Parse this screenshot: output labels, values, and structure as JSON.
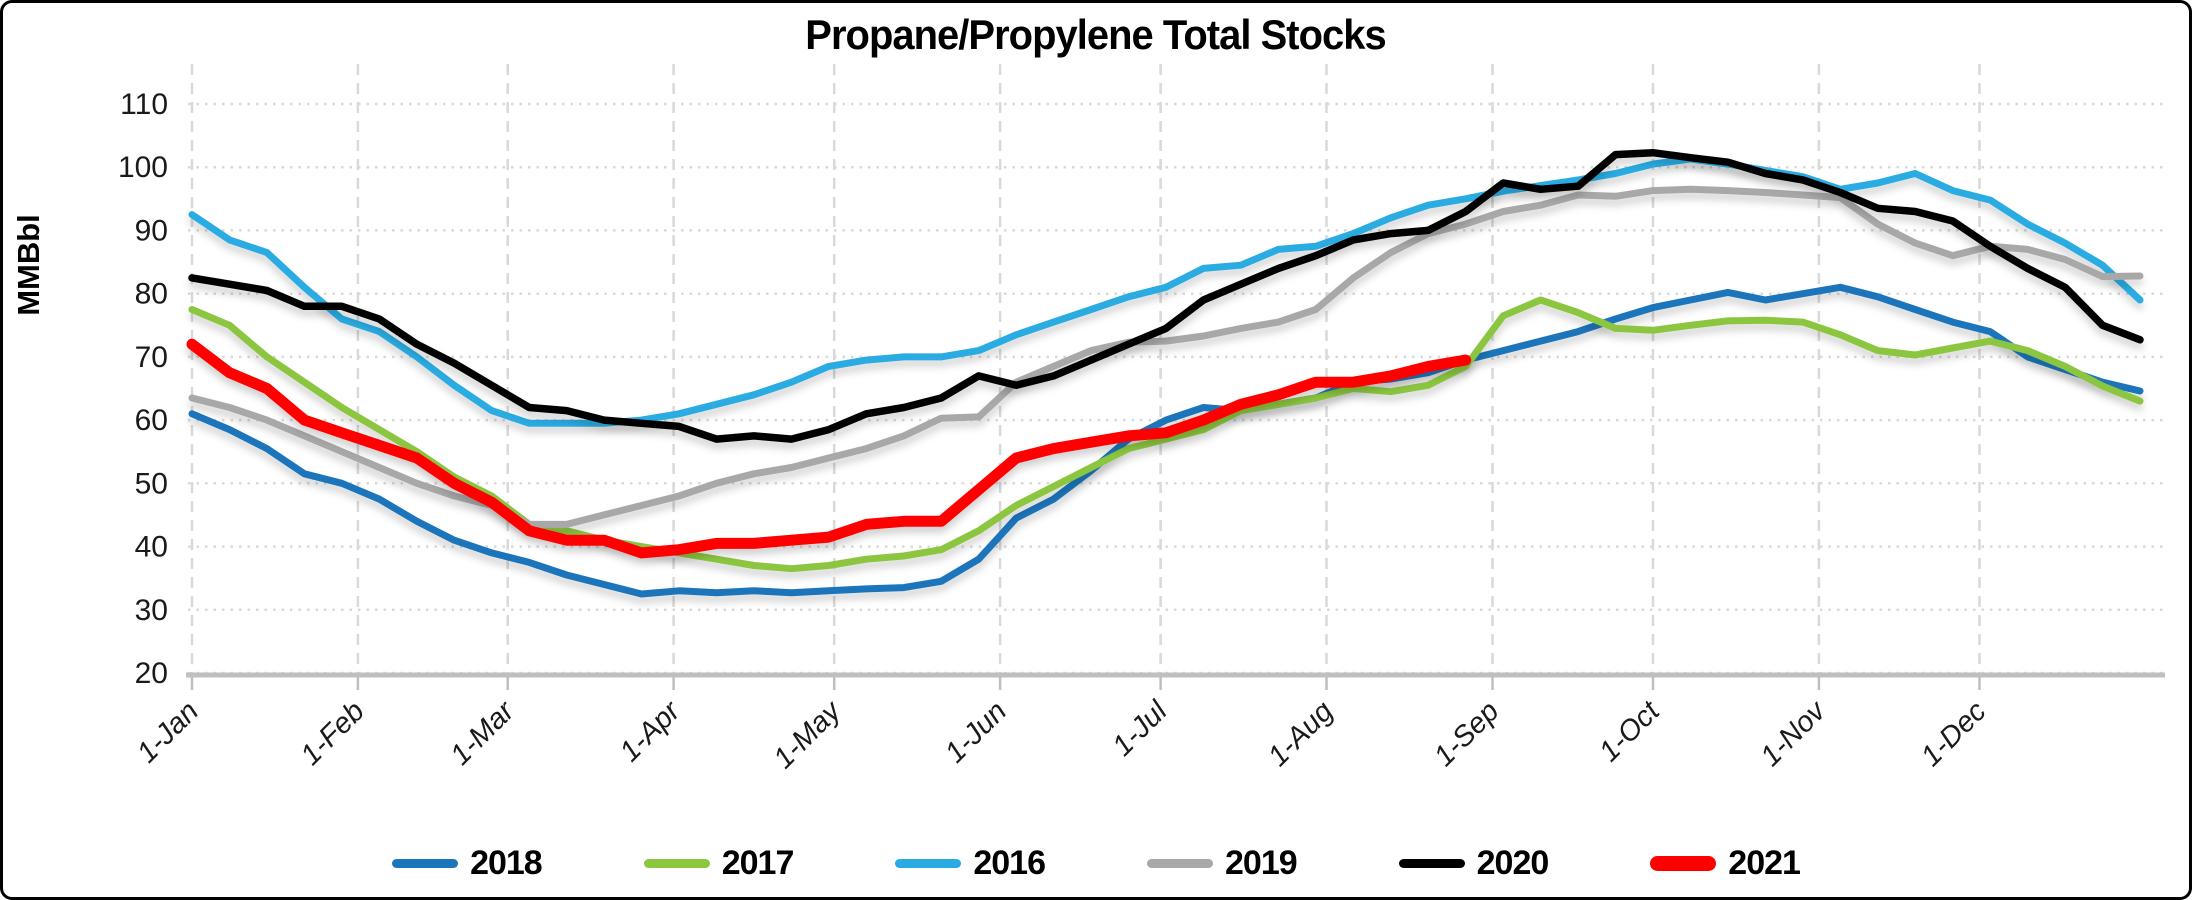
{
  "frame": {
    "background": "#FFFFFF",
    "border_color": "#000000"
  },
  "chart_data": {
    "type": "line",
    "title": "Propane/Propylene Total Stocks",
    "ylabel": "MMBbl",
    "xlabel": "",
    "ylim": [
      20,
      110
    ],
    "y_ticks": [
      20,
      30,
      40,
      50,
      60,
      70,
      80,
      90,
      100,
      110
    ],
    "x_tick_labels": [
      "1-Jan",
      "1-Feb",
      "1-Mar",
      "1-Apr",
      "1-May",
      "1-Jun",
      "1-Jul",
      "1-Aug",
      "1-Sep",
      "1-Oct",
      "1-Nov",
      "1-Dec"
    ],
    "x_tick_days": [
      0,
      31,
      59,
      90,
      120,
      151,
      181,
      212,
      243,
      273,
      304,
      334
    ],
    "x_axis_span_days": [
      0,
      364
    ],
    "sample_interval_days": 7,
    "grid": {
      "horizontal": "dotted",
      "vertical": "dashed",
      "color": "#D9D9D9"
    },
    "legend_position": "bottom",
    "series": [
      {
        "name": "2018",
        "color": "#1B75BB",
        "width": 7,
        "values": [
          61,
          58.5,
          55.5,
          51.5,
          50,
          47.5,
          44,
          41,
          39,
          37.5,
          35.5,
          34,
          32.5,
          33,
          32.7,
          33,
          32.7,
          33,
          33.3,
          33.5,
          34.5,
          38,
          44.5,
          47.5,
          52,
          57,
          60,
          62,
          61.5,
          62.5,
          63.5,
          66,
          66.5,
          67.5,
          69.5,
          71,
          72.5,
          74,
          76,
          77.8,
          79,
          80.2,
          79,
          80,
          81,
          79.5,
          77.5,
          75.5,
          74,
          70,
          68,
          66,
          64.6
        ]
      },
      {
        "name": "2017",
        "color": "#8CC63F",
        "width": 7,
        "values": [
          77.5,
          75,
          70,
          66,
          62,
          58.5,
          55,
          51,
          48,
          43.5,
          42.5,
          41,
          40,
          39,
          38,
          37,
          36.5,
          37,
          38,
          38.5,
          39.5,
          42.5,
          46.5,
          49.5,
          52.5,
          55.5,
          57,
          58.5,
          61.5,
          62.5,
          63.5,
          65,
          64.5,
          65.5,
          68.5,
          76.5,
          79,
          77,
          74.5,
          74.2,
          75,
          75.7,
          75.8,
          75.5,
          73.5,
          71,
          70.3,
          71.4,
          72.5,
          71,
          68.5,
          65.4,
          63
        ]
      },
      {
        "name": "2016",
        "color": "#29ABE2",
        "width": 7,
        "values": [
          92.5,
          88.5,
          86.5,
          81,
          76,
          74,
          70,
          65.5,
          61.5,
          59.5,
          59.5,
          59.5,
          60,
          61,
          62.5,
          64,
          66,
          68.5,
          69.5,
          70,
          70,
          71,
          73.5,
          75.5,
          77.5,
          79.5,
          81,
          84,
          84.5,
          87,
          87.5,
          89.5,
          92,
          94,
          95,
          96.2,
          97.1,
          98,
          99,
          100.5,
          101.3,
          100.5,
          99.5,
          98.5,
          96.5,
          97.5,
          99,
          96.3,
          94.8,
          91,
          88,
          84.5,
          79
        ]
      },
      {
        "name": "2019",
        "color": "#A8A8A8",
        "width": 7,
        "values": [
          63.5,
          62,
          60,
          57.5,
          55,
          52.5,
          50,
          48,
          46.5,
          43.5,
          43.5,
          45,
          46.5,
          48,
          50,
          51.5,
          52.5,
          54,
          55.5,
          57.5,
          60.3,
          60.5,
          66,
          68.5,
          71,
          72.3,
          72.5,
          73.3,
          74.5,
          75.5,
          77.5,
          82.5,
          86.5,
          89.5,
          91,
          93,
          94,
          95.6,
          95.4,
          96.3,
          96.5,
          96.3,
          96,
          95.6,
          95.2,
          91,
          88,
          86,
          87.5,
          87,
          85.4,
          82.7,
          82.8
        ]
      },
      {
        "name": "2020",
        "color": "#000000",
        "width": 7.5,
        "values": [
          82.5,
          81.5,
          80.5,
          78,
          78,
          76,
          72,
          69,
          65.5,
          62,
          61.5,
          60,
          59.5,
          59,
          57,
          57.5,
          57,
          58.5,
          61,
          62,
          63.5,
          67,
          65.5,
          67,
          69.5,
          72,
          74.5,
          79,
          81.5,
          84,
          86,
          88.5,
          89.5,
          90,
          93,
          97.5,
          96.5,
          97,
          102,
          102.3,
          101.5,
          100.8,
          99,
          98,
          96,
          93.5,
          93,
          91.5,
          87.5,
          84,
          81,
          75,
          72.7
        ]
      },
      {
        "name": "2021",
        "color": "#FF0000",
        "width": 11,
        "values": [
          72,
          67.5,
          65,
          60,
          58,
          56,
          54,
          50,
          47,
          42.5,
          41,
          41,
          39,
          39.5,
          40.5,
          40.5,
          41,
          41.5,
          43.5,
          44,
          44,
          49,
          54,
          55.5,
          56.5,
          57.5,
          58,
          60,
          62.5,
          64,
          66,
          66,
          67,
          68.5,
          69.5
        ]
      }
    ]
  },
  "legend": {
    "items": [
      {
        "label": "2018",
        "color": "#1B75BB"
      },
      {
        "label": "2017",
        "color": "#8CC63F"
      },
      {
        "label": "2016",
        "color": "#29ABE2"
      },
      {
        "label": "2019",
        "color": "#A8A8A8"
      },
      {
        "label": "2020",
        "color": "#000000"
      },
      {
        "label": "2021",
        "color": "#FF0000"
      }
    ]
  }
}
